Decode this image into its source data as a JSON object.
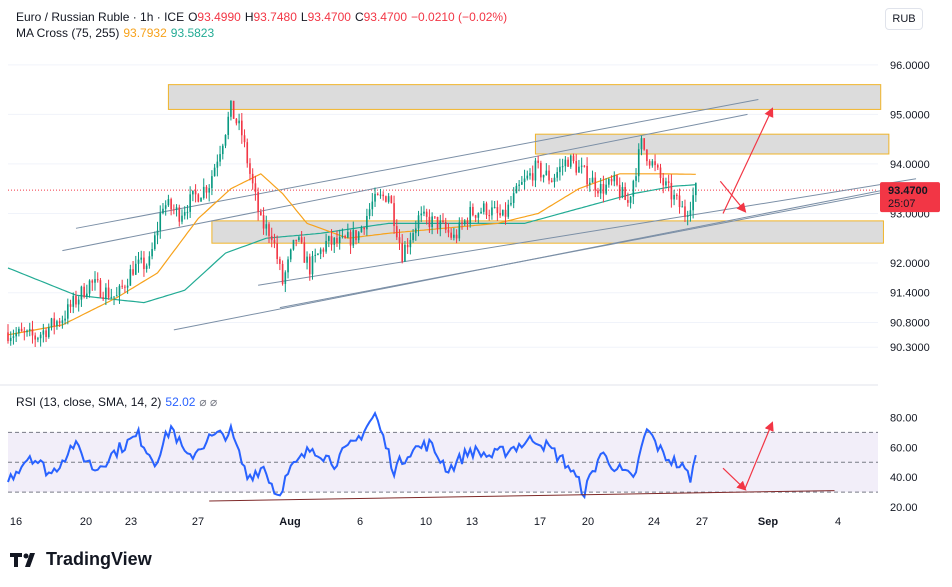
{
  "header": {
    "symbol": "Euro / Russian Ruble · 1h · ICE",
    "o_label": "O",
    "o_value": "93.4990",
    "h_label": "H",
    "h_value": "93.7480",
    "l_label": "L",
    "l_value": "93.4700",
    "c_label": "C",
    "c_value": "93.4700",
    "change": "−0.0210 (−0.02%)",
    "ma_title": "MA Cross (75, 255)",
    "ma_fast": "93.7932",
    "ma_slow": "93.5823",
    "rsi_title": "RSI (13, close, SMA, 14, 2)",
    "rsi_value": "52.02",
    "rsi_icons": "⌀ ⌀"
  },
  "currency_unit": "RUB",
  "price_tag": {
    "price": "93.4700",
    "countdown": "25:07"
  },
  "logo_text": "TradingView",
  "colors": {
    "up": "#089981",
    "down": "#f23645",
    "ma_fast": "#f7a21b",
    "ma_slow": "#22ab94",
    "rsi": "#2962ff",
    "zone_fill": "#dcdcdc",
    "zone_border": "#f0b429",
    "trend": "#7b8fa6",
    "arrow": "#f23645"
  },
  "chart_data": [
    {
      "type": "candlestick",
      "title": "Euro / Russian Ruble · 1h · ICE",
      "y_ticks": [
        96.0,
        95.0,
        94.0,
        93.0,
        92.0,
        91.4,
        90.8,
        90.3
      ],
      "ylim": [
        89.8,
        96.4
      ],
      "x_ticks": [
        "16",
        "20",
        "23",
        "27",
        "Aug",
        "6",
        "10",
        "13",
        "17",
        "20",
        "24",
        "27",
        "Sep",
        "4"
      ],
      "xlim_index": [
        0,
        320
      ],
      "close_anchors": [
        {
          "i": 0,
          "v": 90.6
        },
        {
          "i": 10,
          "v": 90.5
        },
        {
          "i": 20,
          "v": 90.9
        },
        {
          "i": 30,
          "v": 91.6
        },
        {
          "i": 40,
          "v": 91.3
        },
        {
          "i": 46,
          "v": 91.9
        },
        {
          "i": 52,
          "v": 92.0
        },
        {
          "i": 57,
          "v": 93.2
        },
        {
          "i": 63,
          "v": 93.0
        },
        {
          "i": 68,
          "v": 93.3
        },
        {
          "i": 74,
          "v": 93.6
        },
        {
          "i": 79,
          "v": 94.5
        },
        {
          "i": 82,
          "v": 95.1
        },
        {
          "i": 86,
          "v": 94.6
        },
        {
          "i": 89,
          "v": 93.8
        },
        {
          "i": 93,
          "v": 92.8
        },
        {
          "i": 97,
          "v": 92.6
        },
        {
          "i": 101,
          "v": 91.6
        },
        {
          "i": 106,
          "v": 92.5
        },
        {
          "i": 111,
          "v": 91.9
        },
        {
          "i": 117,
          "v": 92.4
        },
        {
          "i": 123,
          "v": 92.4
        },
        {
          "i": 129,
          "v": 92.6
        },
        {
          "i": 134,
          "v": 93.2
        },
        {
          "i": 140,
          "v": 93.4
        },
        {
          "i": 145,
          "v": 92.2
        },
        {
          "i": 151,
          "v": 92.9
        },
        {
          "i": 158,
          "v": 92.8
        },
        {
          "i": 164,
          "v": 92.5
        },
        {
          "i": 170,
          "v": 93.0
        },
        {
          "i": 176,
          "v": 93.1
        },
        {
          "i": 182,
          "v": 92.9
        },
        {
          "i": 188,
          "v": 93.5
        },
        {
          "i": 194,
          "v": 93.9
        },
        {
          "i": 200,
          "v": 93.7
        },
        {
          "i": 206,
          "v": 94.1
        },
        {
          "i": 212,
          "v": 93.8
        },
        {
          "i": 218,
          "v": 93.5
        },
        {
          "i": 223,
          "v": 93.6
        },
        {
          "i": 228,
          "v": 93.2
        },
        {
          "i": 233,
          "v": 94.4
        },
        {
          "i": 237,
          "v": 94.0
        },
        {
          "i": 241,
          "v": 93.6
        },
        {
          "i": 245,
          "v": 93.3
        },
        {
          "i": 249,
          "v": 93.0
        },
        {
          "i": 253,
          "v": 93.47
        }
      ],
      "ma_fast": [
        {
          "i": 0,
          "v": 90.55
        },
        {
          "i": 20,
          "v": 90.75
        },
        {
          "i": 40,
          "v": 91.3
        },
        {
          "i": 55,
          "v": 91.8
        },
        {
          "i": 70,
          "v": 92.9
        },
        {
          "i": 82,
          "v": 93.5
        },
        {
          "i": 93,
          "v": 93.8
        },
        {
          "i": 101,
          "v": 93.4
        },
        {
          "i": 110,
          "v": 92.8
        },
        {
          "i": 125,
          "v": 92.5
        },
        {
          "i": 140,
          "v": 92.6
        },
        {
          "i": 160,
          "v": 92.7
        },
        {
          "i": 180,
          "v": 92.8
        },
        {
          "i": 195,
          "v": 93.0
        },
        {
          "i": 210,
          "v": 93.5
        },
        {
          "i": 225,
          "v": 93.8
        },
        {
          "i": 240,
          "v": 93.8
        },
        {
          "i": 253,
          "v": 93.79
        }
      ],
      "ma_slow": [
        {
          "i": 0,
          "v": 91.9
        },
        {
          "i": 25,
          "v": 91.35
        },
        {
          "i": 50,
          "v": 91.2
        },
        {
          "i": 65,
          "v": 91.45
        },
        {
          "i": 80,
          "v": 92.2
        },
        {
          "i": 95,
          "v": 92.5
        },
        {
          "i": 115,
          "v": 92.6
        },
        {
          "i": 140,
          "v": 92.8
        },
        {
          "i": 165,
          "v": 92.8
        },
        {
          "i": 190,
          "v": 92.8
        },
        {
          "i": 210,
          "v": 93.1
        },
        {
          "i": 230,
          "v": 93.4
        },
        {
          "i": 245,
          "v": 93.55
        },
        {
          "i": 253,
          "v": 93.58
        }
      ],
      "zones": [
        {
          "x0": 59,
          "x1": 321,
          "y0": 95.1,
          "y1": 95.6
        },
        {
          "x0": 194,
          "x1": 324,
          "y0": 94.2,
          "y1": 94.6
        },
        {
          "x0": 75,
          "x1": 322,
          "y0": 92.4,
          "y1": 92.85
        }
      ],
      "trendlines": [
        {
          "x0": 25,
          "y0": 92.7,
          "x1": 276,
          "y1": 95.3
        },
        {
          "x0": 20,
          "y0": 92.25,
          "x1": 272,
          "y1": 95.0
        },
        {
          "x0": 92,
          "y0": 91.55,
          "x1": 334,
          "y1": 93.7
        },
        {
          "x0": 61,
          "y0": 90.65,
          "x1": 334,
          "y1": 93.6
        },
        {
          "x0": 100,
          "y0": 91.1,
          "x1": 334,
          "y1": 93.55
        }
      ],
      "arrows": [
        {
          "x0": 263,
          "y0": 93.0,
          "x1": 281,
          "y1": 95.1
        },
        {
          "x0": 262,
          "y0": 93.65,
          "x1": 271,
          "y1": 93.05
        }
      ]
    },
    {
      "type": "line",
      "title": "RSI (13, close, SMA, 14, 2)",
      "y_ticks": [
        80.0,
        60.0,
        40.0,
        20.0
      ],
      "ylim": [
        18,
        89
      ],
      "band": [
        30,
        70
      ],
      "midline": 50,
      "rsi_anchors": [
        {
          "i": 0,
          "v": 38
        },
        {
          "i": 8,
          "v": 55
        },
        {
          "i": 16,
          "v": 42
        },
        {
          "i": 24,
          "v": 62
        },
        {
          "i": 32,
          "v": 45
        },
        {
          "i": 40,
          "v": 58
        },
        {
          "i": 48,
          "v": 68
        },
        {
          "i": 54,
          "v": 50
        },
        {
          "i": 60,
          "v": 74
        },
        {
          "i": 66,
          "v": 52
        },
        {
          "i": 74,
          "v": 66
        },
        {
          "i": 82,
          "v": 70
        },
        {
          "i": 88,
          "v": 40
        },
        {
          "i": 94,
          "v": 47
        },
        {
          "i": 99,
          "v": 28
        },
        {
          "i": 104,
          "v": 45
        },
        {
          "i": 112,
          "v": 60
        },
        {
          "i": 120,
          "v": 50
        },
        {
          "i": 128,
          "v": 64
        },
        {
          "i": 135,
          "v": 82
        },
        {
          "i": 142,
          "v": 45
        },
        {
          "i": 148,
          "v": 58
        },
        {
          "i": 155,
          "v": 62
        },
        {
          "i": 162,
          "v": 45
        },
        {
          "i": 170,
          "v": 58
        },
        {
          "i": 178,
          "v": 54
        },
        {
          "i": 186,
          "v": 60
        },
        {
          "i": 194,
          "v": 66
        },
        {
          "i": 200,
          "v": 58
        },
        {
          "i": 206,
          "v": 48
        },
        {
          "i": 212,
          "v": 30
        },
        {
          "i": 218,
          "v": 56
        },
        {
          "i": 224,
          "v": 46
        },
        {
          "i": 230,
          "v": 38
        },
        {
          "i": 235,
          "v": 72
        },
        {
          "i": 241,
          "v": 55
        },
        {
          "i": 247,
          "v": 48
        },
        {
          "i": 251,
          "v": 40
        },
        {
          "i": 253,
          "v": 52
        }
      ],
      "trendlines": [
        {
          "x0": 74,
          "y0": 24,
          "x1": 304,
          "y1": 31
        }
      ],
      "arrows": [
        {
          "x0": 271,
          "y0": 32,
          "x1": 281,
          "y1": 76
        },
        {
          "x0": 263,
          "y0": 46,
          "x1": 271,
          "y1": 32
        }
      ]
    }
  ]
}
